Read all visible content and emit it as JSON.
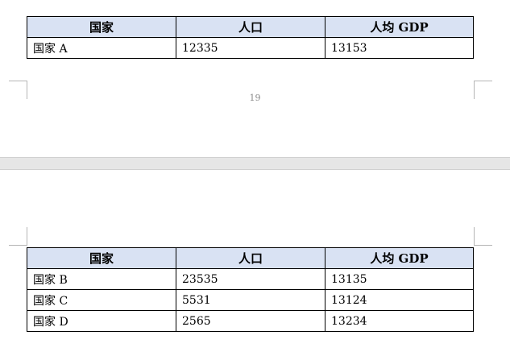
{
  "tables": [
    {
      "headers": [
        "国家",
        "人口",
        "人均 GDP"
      ],
      "rows": [
        [
          "国家 A",
          "12335",
          "13153"
        ]
      ]
    },
    {
      "headers": [
        "国家",
        "人口",
        "人均 GDP"
      ],
      "rows": [
        [
          "国家 B",
          "23535",
          "13135"
        ],
        [
          "国家 C",
          "5531",
          "13124"
        ],
        [
          "国家 D",
          "2565",
          "13234"
        ]
      ]
    }
  ],
  "page_number": "19"
}
